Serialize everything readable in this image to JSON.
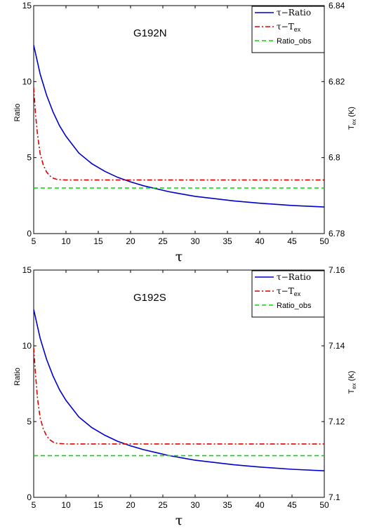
{
  "chart_data": [
    {
      "type": "line",
      "title": "G192N",
      "xlabel": "τ",
      "ylabel": "Ratio",
      "ylabel_right": "T_ex (K)",
      "xlim": [
        5,
        50
      ],
      "ylim": [
        0,
        15
      ],
      "ylim_right": [
        6.78,
        6.84
      ],
      "x_ticks": [
        "5",
        "10",
        "15",
        "20",
        "25",
        "30",
        "35",
        "40",
        "45",
        "50"
      ],
      "y_ticks": [
        "0",
        "5",
        "10",
        "15"
      ],
      "y_ticks_right": [
        "6.78",
        "6.8",
        "6.82",
        "6.84"
      ],
      "legend_position": "top-right",
      "series": [
        {
          "name": "τ−Ratio",
          "axis": "left",
          "style": "solid",
          "color": "#0000cc",
          "x": [
            5,
            6,
            7,
            8,
            9,
            10,
            12,
            14,
            16,
            18,
            20,
            22,
            24,
            26,
            28,
            30,
            33,
            36,
            40,
            45,
            50
          ],
          "y": [
            12.4,
            10.5,
            9.1,
            8.0,
            7.1,
            6.4,
            5.3,
            4.6,
            4.1,
            3.7,
            3.4,
            3.15,
            2.95,
            2.75,
            2.6,
            2.45,
            2.3,
            2.15,
            2.0,
            1.85,
            1.75
          ]
        },
        {
          "name": "τ−T",
          "name_sub": "ex",
          "axis": "right",
          "style": "dashdot",
          "color": "#dd0000",
          "x": [
            5,
            5.3,
            5.6,
            6,
            6.5,
            7,
            7.5,
            8,
            8.5,
            9,
            10,
            11,
            12,
            15,
            20,
            30,
            50
          ],
          "y": [
            6.8185,
            6.811,
            6.806,
            6.801,
            6.798,
            6.7962,
            6.7952,
            6.7946,
            6.7943,
            6.7942,
            6.7941,
            6.7941,
            6.7941,
            6.7941,
            6.7941,
            6.7941,
            6.7941
          ]
        },
        {
          "name": "Ratio_obs",
          "axis": "left",
          "style": "dashed",
          "color": "#00dd00",
          "x": [
            5,
            50
          ],
          "y": [
            3.0,
            3.0
          ]
        }
      ]
    },
    {
      "type": "line",
      "title": "G192S",
      "xlabel": "τ",
      "ylabel": "Ratio",
      "ylabel_right": "T_ex (K)",
      "xlim": [
        5,
        50
      ],
      "ylim": [
        0,
        15
      ],
      "ylim_right": [
        7.1,
        7.16
      ],
      "x_ticks": [
        "5",
        "10",
        "15",
        "20",
        "25",
        "30",
        "35",
        "40",
        "45",
        "50"
      ],
      "y_ticks": [
        "0",
        "5",
        "10",
        "15"
      ],
      "y_ticks_right": [
        "7.1",
        "7.12",
        "7.14",
        "7.16"
      ],
      "legend_position": "top-right",
      "series": [
        {
          "name": "τ−Ratio",
          "axis": "left",
          "style": "solid",
          "color": "#0000cc",
          "x": [
            5,
            6,
            7,
            8,
            9,
            10,
            12,
            14,
            16,
            18,
            20,
            22,
            24,
            26,
            28,
            30,
            33,
            36,
            40,
            45,
            50
          ],
          "y": [
            12.4,
            10.5,
            9.1,
            8.0,
            7.1,
            6.4,
            5.3,
            4.6,
            4.1,
            3.7,
            3.4,
            3.15,
            2.95,
            2.75,
            2.6,
            2.45,
            2.3,
            2.15,
            2.0,
            1.85,
            1.75
          ]
        },
        {
          "name": "τ−T",
          "name_sub": "ex",
          "axis": "right",
          "style": "dashdot",
          "color": "#dd0000",
          "x": [
            5,
            5.3,
            5.6,
            6,
            6.5,
            7,
            7.5,
            8,
            8.5,
            9,
            10,
            11,
            12,
            15,
            20,
            30,
            50
          ],
          "y": [
            7.1395,
            7.132,
            7.126,
            7.121,
            7.118,
            7.1162,
            7.1152,
            7.1146,
            7.1143,
            7.1142,
            7.1141,
            7.1141,
            7.1141,
            7.1141,
            7.1141,
            7.1141,
            7.1141
          ]
        },
        {
          "name": "Ratio_obs",
          "axis": "left",
          "style": "dashed",
          "color": "#00dd00",
          "x": [
            5,
            50
          ],
          "y": [
            2.75,
            2.75
          ]
        }
      ]
    }
  ]
}
